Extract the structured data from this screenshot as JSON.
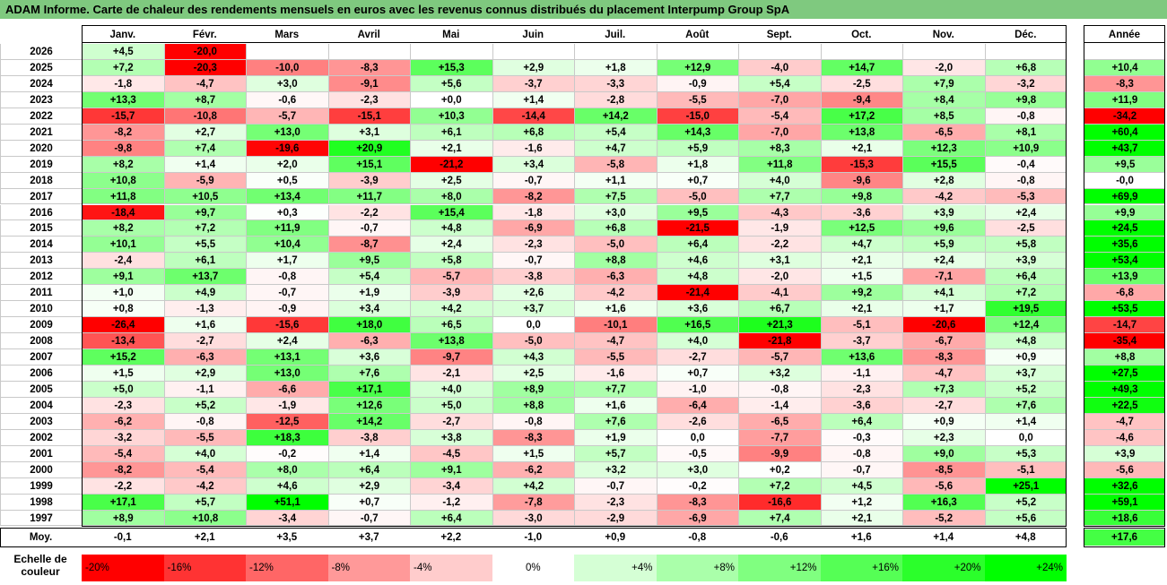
{
  "title": "ADAM Informe. Carte de chaleur des rendements mensuels en euros avec les revenus connus distribués du placement Interpump Group SpA",
  "chart_data": {
    "type": "heatmap",
    "columns": [
      "Janv.",
      "Févr.",
      "Mars",
      "Avril",
      "Mai",
      "Juin",
      "Juil.",
      "Août",
      "Sept.",
      "Oct.",
      "Nov.",
      "Déc."
    ],
    "year_header": "Année",
    "rows": [
      {
        "year": "2026",
        "months": [
          "+4,5",
          "-20,0",
          "",
          "",
          "",
          "",
          "",
          "",
          "",
          "",
          "",
          ""
        ],
        "annual": ""
      },
      {
        "year": "2025",
        "months": [
          "+7,2",
          "-20,3",
          "-10,0",
          "-8,3",
          "+15,3",
          "+2,9",
          "+1,8",
          "+12,9",
          "-4,0",
          "+14,7",
          "-2,0",
          "+6,8"
        ],
        "annual": "+10,4"
      },
      {
        "year": "2024",
        "months": [
          "-1,8",
          "-4,7",
          "+3,0",
          "-9,1",
          "+5,6",
          "-3,7",
          "-3,3",
          "-0,9",
          "+5,4",
          "-2,5",
          "+7,9",
          "-3,2"
        ],
        "annual": "-8,3"
      },
      {
        "year": "2023",
        "months": [
          "+13,3",
          "+8,7",
          "-0,6",
          "-2,3",
          "+0,0",
          "+1,4",
          "-2,8",
          "-5,5",
          "-7,0",
          "-9,4",
          "+8,4",
          "+9,8"
        ],
        "annual": "+11,9"
      },
      {
        "year": "2022",
        "months": [
          "-15,7",
          "-10,8",
          "-5,7",
          "-15,1",
          "+10,3",
          "-14,4",
          "+14,2",
          "-15,0",
          "-5,4",
          "+17,2",
          "+8,5",
          "-0,8"
        ],
        "annual": "-34,2"
      },
      {
        "year": "2021",
        "months": [
          "-8,2",
          "+2,7",
          "+13,0",
          "+3,1",
          "+6,1",
          "+6,8",
          "+5,4",
          "+14,3",
          "-7,0",
          "+13,8",
          "-6,5",
          "+8,1"
        ],
        "annual": "+60,4"
      },
      {
        "year": "2020",
        "months": [
          "-9,8",
          "+7,4",
          "-19,6",
          "+20,9",
          "+2,1",
          "-1,6",
          "+4,7",
          "+5,9",
          "+8,3",
          "+2,1",
          "+12,3",
          "+10,9"
        ],
        "annual": "+43,7"
      },
      {
        "year": "2019",
        "months": [
          "+8,2",
          "+1,4",
          "+2,0",
          "+15,1",
          "-21,2",
          "+3,4",
          "-5,8",
          "+1,8",
          "+11,8",
          "-15,3",
          "+15,5",
          "-0,4"
        ],
        "annual": "+9,5"
      },
      {
        "year": "2018",
        "months": [
          "+10,8",
          "-5,9",
          "+0,5",
          "-3,9",
          "+2,5",
          "-0,7",
          "+1,1",
          "+0,7",
          "+4,0",
          "-9,6",
          "+2,8",
          "-0,8"
        ],
        "annual": "-0,0"
      },
      {
        "year": "2017",
        "months": [
          "+11,8",
          "+10,5",
          "+13,4",
          "+11,7",
          "+8,0",
          "-8,2",
          "+7,5",
          "-5,0",
          "+7,7",
          "+9,8",
          "-4,2",
          "-5,3"
        ],
        "annual": "+69,9"
      },
      {
        "year": "2016",
        "months": [
          "-18,4",
          "+9,7",
          "+0,3",
          "-2,2",
          "+15,4",
          "-1,8",
          "+3,0",
          "+9,5",
          "-4,3",
          "-3,6",
          "+3,9",
          "+2,4"
        ],
        "annual": "+9,9"
      },
      {
        "year": "2015",
        "months": [
          "+8,2",
          "+7,2",
          "+11,9",
          "-0,7",
          "+4,8",
          "-6,9",
          "+6,8",
          "-21,5",
          "-1,9",
          "+12,5",
          "+9,6",
          "-2,5"
        ],
        "annual": "+24,5"
      },
      {
        "year": "2014",
        "months": [
          "+10,1",
          "+5,5",
          "+10,4",
          "-8,7",
          "+2,4",
          "-2,3",
          "-5,0",
          "+6,4",
          "-2,2",
          "+4,7",
          "+5,9",
          "+5,8"
        ],
        "annual": "+35,6"
      },
      {
        "year": "2013",
        "months": [
          "-2,4",
          "+6,1",
          "+1,7",
          "+9,5",
          "+5,8",
          "-0,7",
          "+8,8",
          "+4,6",
          "+3,1",
          "+2,1",
          "+2,4",
          "+3,9"
        ],
        "annual": "+53,4"
      },
      {
        "year": "2012",
        "months": [
          "+9,1",
          "+13,7",
          "-0,8",
          "+5,4",
          "-5,7",
          "-3,8",
          "-6,3",
          "+4,8",
          "-2,0",
          "+1,5",
          "-7,1",
          "+6,4"
        ],
        "annual": "+13,9"
      },
      {
        "year": "2011",
        "months": [
          "+1,0",
          "+4,9",
          "-0,7",
          "+1,9",
          "-3,9",
          "+2,6",
          "-4,2",
          "-21,4",
          "-4,1",
          "+9,2",
          "+4,1",
          "+7,2"
        ],
        "annual": "-6,8"
      },
      {
        "year": "2010",
        "months": [
          "+0,8",
          "-1,3",
          "-0,9",
          "+3,4",
          "+4,2",
          "+3,7",
          "+1,6",
          "+3,6",
          "+6,7",
          "+2,1",
          "+1,7",
          "+19,5"
        ],
        "annual": "+53,5"
      },
      {
        "year": "2009",
        "months": [
          "-26,4",
          "+1,6",
          "-15,6",
          "+18,0",
          "+6,5",
          "0,0",
          "-10,1",
          "+16,5",
          "+21,3",
          "-5,1",
          "-20,6",
          "+12,4"
        ],
        "annual": "-14,7"
      },
      {
        "year": "2008",
        "months": [
          "-13,4",
          "-2,7",
          "+2,4",
          "-6,3",
          "+13,8",
          "-5,0",
          "-4,7",
          "+4,0",
          "-21,8",
          "-3,7",
          "-6,7",
          "+4,8"
        ],
        "annual": "-35,4"
      },
      {
        "year": "2007",
        "months": [
          "+15,2",
          "-6,3",
          "+13,1",
          "+3,6",
          "-9,7",
          "+4,3",
          "-5,5",
          "-2,7",
          "-5,7",
          "+13,6",
          "-8,3",
          "+0,9"
        ],
        "annual": "+8,8"
      },
      {
        "year": "2006",
        "months": [
          "+1,5",
          "+2,9",
          "+13,0",
          "+7,6",
          "-2,1",
          "+2,5",
          "-1,6",
          "+0,7",
          "+3,2",
          "-1,1",
          "-4,7",
          "+3,7"
        ],
        "annual": "+27,5"
      },
      {
        "year": "2005",
        "months": [
          "+5,0",
          "-1,1",
          "-6,6",
          "+17,1",
          "+4,0",
          "+8,9",
          "+7,7",
          "-1,0",
          "-0,8",
          "-2,3",
          "+7,3",
          "+5,2"
        ],
        "annual": "+49,3"
      },
      {
        "year": "2004",
        "months": [
          "-2,3",
          "+5,2",
          "-1,9",
          "+12,6",
          "+5,0",
          "+8,8",
          "+1,6",
          "-6,4",
          "-1,4",
          "-3,6",
          "-2,7",
          "+7,6"
        ],
        "annual": "+22,5"
      },
      {
        "year": "2003",
        "months": [
          "-6,2",
          "-0,8",
          "-12,5",
          "+14,2",
          "-2,7",
          "-0,8",
          "+7,6",
          "-2,6",
          "-6,5",
          "+6,4",
          "+0,9",
          "+1,4"
        ],
        "annual": "-4,7"
      },
      {
        "year": "2002",
        "months": [
          "-3,2",
          "-5,5",
          "+18,3",
          "-3,8",
          "+3,8",
          "-8,3",
          "+1,9",
          "0,0",
          "-7,7",
          "-0,3",
          "+2,3",
          "0,0"
        ],
        "annual": "-4,6"
      },
      {
        "year": "2001",
        "months": [
          "-5,4",
          "+4,0",
          "-0,2",
          "+1,4",
          "-4,5",
          "+1,5",
          "+5,7",
          "-0,5",
          "-9,9",
          "-0,8",
          "+9,0",
          "+5,3"
        ],
        "annual": "+3,9"
      },
      {
        "year": "2000",
        "months": [
          "-8,2",
          "-5,4",
          "+8,0",
          "+6,4",
          "+9,1",
          "-6,2",
          "+3,2",
          "+3,0",
          "+0,2",
          "-0,7",
          "-8,5",
          "-5,1"
        ],
        "annual": "-5,6"
      },
      {
        "year": "1999",
        "months": [
          "-2,2",
          "-4,2",
          "+4,6",
          "+2,9",
          "-3,4",
          "+4,2",
          "-0,7",
          "-0,2",
          "+7,2",
          "+4,5",
          "-5,6",
          "+25,1"
        ],
        "annual": "+32,6"
      },
      {
        "year": "1998",
        "months": [
          "+17,1",
          "+5,7",
          "+51,1",
          "+0,7",
          "-1,2",
          "-7,8",
          "-2,3",
          "-8,3",
          "-16,6",
          "+1,2",
          "+16,3",
          "+5,2"
        ],
        "annual": "+59,1"
      },
      {
        "year": "1997",
        "months": [
          "+8,9",
          "+10,8",
          "-3,4",
          "-0,7",
          "+6,4",
          "-3,0",
          "-2,9",
          "-6,9",
          "+7,4",
          "+2,1",
          "-5,2",
          "+5,6"
        ],
        "annual": "+18,6"
      }
    ],
    "average": {
      "label": "Moy.",
      "months": [
        "-0,1",
        "+2,1",
        "+3,5",
        "+3,7",
        "+2,2",
        "-1,0",
        "+0,9",
        "-0,8",
        "-0,6",
        "+1,6",
        "+1,4",
        "+4,8"
      ],
      "annual": "+17,6"
    },
    "scale": {
      "label": "Echelle de\ncouleur",
      "stops": [
        "-20%",
        "-16%",
        "-12%",
        "-8%",
        "-4%",
        "0%",
        "+4%",
        "+8%",
        "+12%",
        "+16%",
        "+20%",
        "+24%"
      ]
    },
    "colors": {
      "negative_max": "#ff0000",
      "neutral": "#ffffff",
      "positive_max": "#00ff00"
    }
  }
}
